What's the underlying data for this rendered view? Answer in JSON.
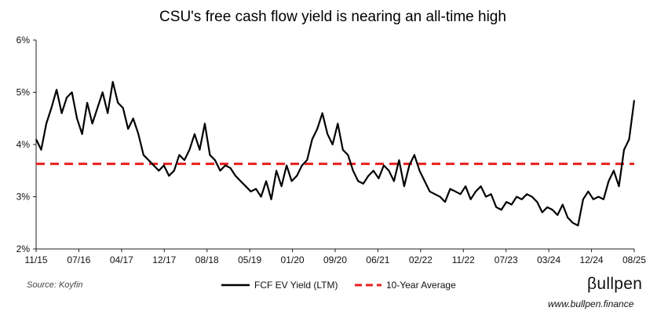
{
  "chart_data": {
    "type": "line",
    "title": "CSU's free cash flow yield is nearing an all-time high",
    "xlabel": "",
    "ylabel": "",
    "ylim": [
      2,
      6
    ],
    "y_ticks": [
      "2%",
      "3%",
      "4%",
      "5%",
      "6%"
    ],
    "y_tick_values": [
      2,
      3,
      4,
      5,
      6
    ],
    "x_ticks": [
      "11/15",
      "07/16",
      "04/17",
      "12/17",
      "08/18",
      "05/19",
      "01/20",
      "09/20",
      "06/21",
      "02/22",
      "11/22",
      "07/23",
      "03/24",
      "12/24",
      "08/25"
    ],
    "x_range": [
      0,
      117
    ],
    "grid": false,
    "legend_position": "bottom-center",
    "series": [
      {
        "name": "FCF EV Yield (LTM)",
        "color": "#000000",
        "style": "solid",
        "x": [
          0,
          1,
          2,
          3,
          4,
          5,
          6,
          7,
          8,
          9,
          10,
          11,
          12,
          13,
          14,
          15,
          16,
          17,
          18,
          19,
          20,
          21,
          22,
          23,
          24,
          25,
          26,
          27,
          28,
          29,
          30,
          31,
          32,
          33,
          34,
          35,
          36,
          37,
          38,
          39,
          40,
          41,
          42,
          43,
          44,
          45,
          46,
          47,
          48,
          49,
          50,
          51,
          52,
          53,
          54,
          55,
          56,
          57,
          58,
          59,
          60,
          61,
          62,
          63,
          64,
          65,
          66,
          67,
          68,
          69,
          70,
          71,
          72,
          73,
          74,
          75,
          76,
          77,
          78,
          79,
          80,
          81,
          82,
          83,
          84,
          85,
          86,
          87,
          88,
          89,
          90,
          91,
          92,
          93,
          94,
          95,
          96,
          97,
          98,
          99,
          100,
          101,
          102,
          103,
          104,
          105,
          106,
          107,
          108,
          109,
          110,
          111,
          112,
          113,
          114,
          115,
          116,
          117
        ],
        "values": [
          4.1,
          3.9,
          4.4,
          4.7,
          5.05,
          4.6,
          4.9,
          5.0,
          4.5,
          4.2,
          4.8,
          4.4,
          4.7,
          5.0,
          4.6,
          5.2,
          4.8,
          4.7,
          4.3,
          4.5,
          4.2,
          3.8,
          3.7,
          3.6,
          3.5,
          3.6,
          3.4,
          3.5,
          3.8,
          3.7,
          3.9,
          4.2,
          3.9,
          4.4,
          3.8,
          3.7,
          3.5,
          3.6,
          3.55,
          3.4,
          3.3,
          3.2,
          3.1,
          3.15,
          3.0,
          3.3,
          2.95,
          3.5,
          3.2,
          3.6,
          3.3,
          3.4,
          3.6,
          3.7,
          4.1,
          4.3,
          4.6,
          4.2,
          4.0,
          4.4,
          3.9,
          3.8,
          3.5,
          3.3,
          3.25,
          3.4,
          3.5,
          3.35,
          3.6,
          3.5,
          3.3,
          3.7,
          3.2,
          3.6,
          3.8,
          3.5,
          3.3,
          3.1,
          3.05,
          3.0,
          2.9,
          3.15,
          3.1,
          3.05,
          3.2,
          2.95,
          3.1,
          3.2,
          3.0,
          3.05,
          2.8,
          2.75,
          2.9,
          2.85,
          3.0,
          2.95,
          3.05,
          3.0,
          2.9,
          2.7,
          2.8,
          2.75,
          2.65,
          2.85,
          2.6,
          2.5,
          2.45,
          2.95,
          3.1,
          2.95,
          3.0,
          2.95,
          3.3,
          3.5,
          3.2,
          3.9,
          4.1,
          4.85
        ]
      },
      {
        "name": "10-Year Average",
        "color": "#e8201e",
        "style": "dashed",
        "values": [
          3.63,
          3.63
        ]
      }
    ]
  },
  "footer": {
    "source": "Source: Koyfin",
    "logo_text": "βullpen",
    "website": "www.bullpen.finance"
  },
  "colors": {
    "line": "#000000",
    "average": "#e8201e",
    "axis": "#222222"
  }
}
